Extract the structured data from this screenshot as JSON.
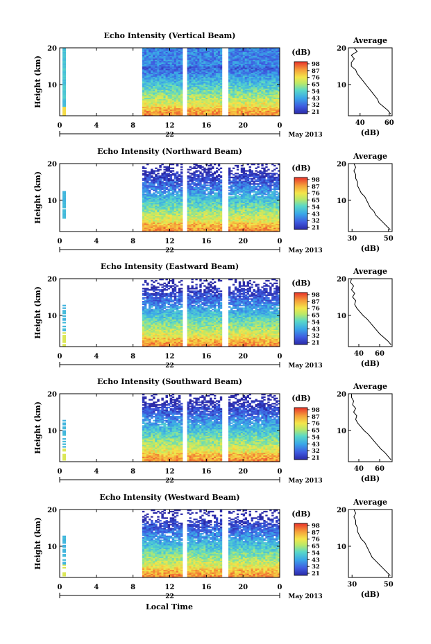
{
  "figure": {
    "x_axis_label": "Local Time",
    "date_label": "May 2013",
    "day_label": "22",
    "height_label": "Height (km)",
    "cb_unit": "(dB)",
    "avg_title": "Average",
    "avg_xlabel": "(dB)"
  },
  "chart_data": [
    {
      "type": "heatmap",
      "title": "Echo Intensity (Vertical Beam)",
      "xlabel": "Local Time",
      "ylabel": "Height (km)",
      "x_ticks": [
        "0",
        "4",
        "8",
        "12",
        "16",
        "20",
        "0"
      ],
      "y_ticks": [
        "20",
        "10"
      ],
      "xlim": [
        0,
        24
      ],
      "ylim": [
        1.5,
        20
      ],
      "colorbar_ticks": [
        "98",
        "87",
        "76",
        "65",
        "54",
        "43",
        "32",
        "21"
      ],
      "average_profile": {
        "x_ticks": [
          "40",
          "60"
        ],
        "xlim": [
          32,
          62
        ],
        "y_ticks": [
          "20",
          "10"
        ],
        "heights": [
          2,
          3,
          4,
          5,
          6,
          7,
          8,
          9,
          10,
          11,
          12,
          13,
          14,
          15,
          16,
          17,
          18,
          19,
          20
        ],
        "values": [
          61,
          59,
          56,
          53,
          52,
          50,
          48,
          46,
          44,
          42,
          40,
          38,
          37,
          34,
          34,
          36,
          34,
          38,
          36
        ]
      }
    },
    {
      "type": "heatmap",
      "title": "Echo Intensity (Northward Beam)",
      "xlabel": "Local Time",
      "ylabel": "Height (km)",
      "x_ticks": [
        "0",
        "4",
        "8",
        "12",
        "16",
        "20",
        "0"
      ],
      "y_ticks": [
        "20",
        "10"
      ],
      "xlim": [
        0,
        24
      ],
      "ylim": [
        1.5,
        20
      ],
      "colorbar_ticks": [
        "98",
        "87",
        "76",
        "65",
        "54",
        "43",
        "32",
        "21"
      ],
      "average_profile": {
        "x_ticks": [
          "30",
          "50"
        ],
        "xlim": [
          28,
          52
        ],
        "y_ticks": [
          "20",
          "10"
        ],
        "heights": [
          2,
          3,
          4,
          5,
          6,
          7,
          8,
          9,
          10,
          11,
          12,
          13,
          14,
          15,
          16,
          17,
          18,
          19,
          20
        ],
        "values": [
          51,
          49,
          47,
          45,
          43,
          42,
          40,
          39,
          38,
          37,
          35,
          34,
          33,
          33,
          32,
          32,
          31,
          32,
          31
        ]
      }
    },
    {
      "type": "heatmap",
      "title": "Echo Intensity (Eastward Beam)",
      "xlabel": "Local Time",
      "ylabel": "Height (km)",
      "x_ticks": [
        "0",
        "4",
        "8",
        "12",
        "16",
        "20",
        "0"
      ],
      "y_ticks": [
        "20",
        "10"
      ],
      "xlim": [
        0,
        24
      ],
      "ylim": [
        1.5,
        20
      ],
      "colorbar_ticks": [
        "98",
        "87",
        "76",
        "65",
        "54",
        "43",
        "32",
        "21"
      ],
      "average_profile": {
        "x_ticks": [
          "40",
          "60"
        ],
        "xlim": [
          30,
          72
        ],
        "y_ticks": [
          "20",
          "10"
        ],
        "heights": [
          2,
          3,
          4,
          5,
          6,
          7,
          8,
          9,
          10,
          11,
          12,
          13,
          14,
          15,
          16,
          17,
          18,
          19,
          20
        ],
        "values": [
          71,
          68,
          64,
          60,
          57,
          54,
          51,
          48,
          44,
          41,
          38,
          36,
          37,
          34,
          36,
          33,
          35,
          32,
          33
        ]
      }
    },
    {
      "type": "heatmap",
      "title": "Echo Intensity (Southward Beam)",
      "xlabel": "Local Time",
      "ylabel": "Height (km)",
      "x_ticks": [
        "0",
        "4",
        "8",
        "12",
        "16",
        "20",
        "0"
      ],
      "y_ticks": [
        "20",
        "10"
      ],
      "xlim": [
        0,
        24
      ],
      "ylim": [
        1.5,
        20
      ],
      "colorbar_ticks": [
        "98",
        "87",
        "76",
        "65",
        "54",
        "43",
        "32",
        "21"
      ],
      "average_profile": {
        "x_ticks": [
          "40",
          "60"
        ],
        "xlim": [
          30,
          72
        ],
        "y_ticks": [
          "20",
          "10"
        ],
        "heights": [
          2,
          3,
          4,
          5,
          6,
          7,
          8,
          9,
          10,
          11,
          12,
          13,
          14,
          15,
          16,
          17,
          18,
          19,
          20
        ],
        "values": [
          71,
          68,
          65,
          61,
          58,
          55,
          52,
          49,
          45,
          42,
          39,
          37,
          38,
          35,
          37,
          34,
          35,
          33,
          33
        ]
      }
    },
    {
      "type": "heatmap",
      "title": "Echo Intensity (Westward Beam)",
      "xlabel": "Local Time",
      "ylabel": "Height (km)",
      "x_ticks": [
        "0",
        "4",
        "8",
        "12",
        "16",
        "20",
        "0"
      ],
      "y_ticks": [
        "20",
        "10"
      ],
      "xlim": [
        0,
        24
      ],
      "ylim": [
        1.5,
        20
      ],
      "colorbar_ticks": [
        "98",
        "87",
        "76",
        "65",
        "54",
        "43",
        "32",
        "21"
      ],
      "average_profile": {
        "x_ticks": [
          "30",
          "50"
        ],
        "xlim": [
          28,
          52
        ],
        "y_ticks": [
          "20",
          "10"
        ],
        "heights": [
          2,
          3,
          4,
          5,
          6,
          7,
          8,
          9,
          10,
          11,
          12,
          13,
          14,
          15,
          16,
          17,
          18,
          19,
          20
        ],
        "values": [
          51,
          49,
          47,
          45,
          43,
          41,
          40,
          39,
          38,
          37,
          35,
          34,
          33,
          33,
          32,
          32,
          31,
          32,
          31
        ]
      }
    }
  ]
}
